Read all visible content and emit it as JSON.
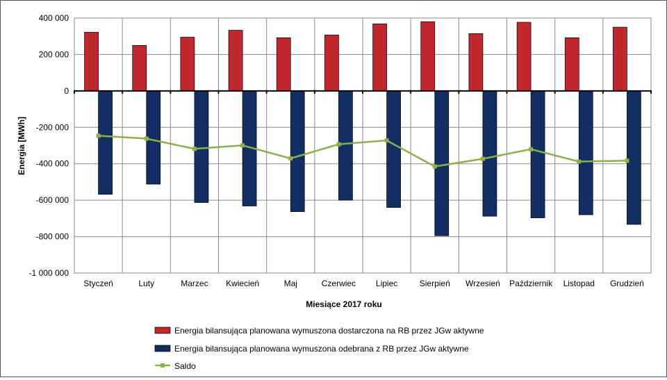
{
  "chart_data": {
    "type": "bar",
    "xlabel": "Miesiące 2017  roku",
    "ylabel": "Energia [MWh]",
    "ylim": [
      -1000000,
      400000
    ],
    "yticks": [
      400000,
      200000,
      0,
      -200000,
      -400000,
      -600000,
      -800000,
      -1000000
    ],
    "ytick_labels": [
      "400 000",
      "200 000",
      "0",
      "-200 000",
      "-400 000",
      "-600 000",
      "-800 000",
      "-1 000 000"
    ],
    "grid": true,
    "legend_position": "bottom",
    "categories": [
      "Styczeń",
      "Luty",
      "Marzec",
      "Kwiecień",
      "Maj",
      "Czerwiec",
      "Lipiec",
      "Sierpień",
      "Wrzesień",
      "Październik",
      "Listopad",
      "Grudzień"
    ],
    "series": [
      {
        "name": "Energia bilansująca planowana wymuszona dostarczona na RB przez JGw aktywne",
        "kind": "bar",
        "color": "#c0282d",
        "values": [
          322000,
          250000,
          295000,
          333000,
          292000,
          307000,
          368000,
          380000,
          315000,
          377000,
          292000,
          350000
        ]
      },
      {
        "name": "Energia bilansująca planowana wymuszona odebrana z RB przez JGw aktywne",
        "kind": "bar",
        "color": "#132e63",
        "values": [
          -568000,
          -512000,
          -613000,
          -632000,
          -663000,
          -600000,
          -640000,
          -795000,
          -688000,
          -697000,
          -680000,
          -733000
        ]
      },
      {
        "name": "Saldo",
        "kind": "line",
        "color": "#8db04a",
        "values": [
          -246000,
          -262000,
          -318000,
          -299000,
          -371000,
          -293000,
          -272000,
          -415000,
          -373000,
          -320000,
          -388000,
          -383000
        ]
      }
    ]
  }
}
